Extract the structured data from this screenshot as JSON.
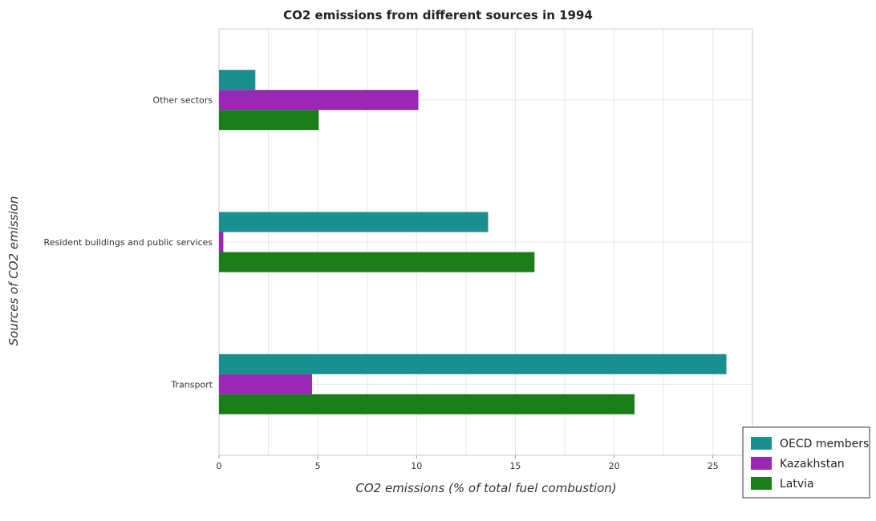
{
  "chart_data": {
    "type": "bar",
    "orientation": "horizontal",
    "title": "CO2 emissions from different sources in 1994",
    "xlabel": "CO2 emissions (% of total fuel combustion)",
    "ylabel": "Sources of CO2 emission",
    "categories": [
      "Other sectors",
      "Resident buildings and public services",
      "Transport"
    ],
    "xlim": [
      0,
      27
    ],
    "xticks": [
      0,
      5,
      10,
      15,
      20,
      25
    ],
    "grid": true,
    "legend_position": "bottom-right",
    "series": [
      {
        "name": "OECD members",
        "color": "#1a8f8f",
        "values": [
          1.84,
          13.62,
          25.68
        ]
      },
      {
        "name": "Kazakhstan",
        "color": "#9b28b4",
        "values": [
          10.09,
          0.22,
          4.71
        ]
      },
      {
        "name": "Latvia",
        "color": "#1a7d1a",
        "values": [
          5.05,
          15.97,
          21.03
        ]
      }
    ]
  }
}
